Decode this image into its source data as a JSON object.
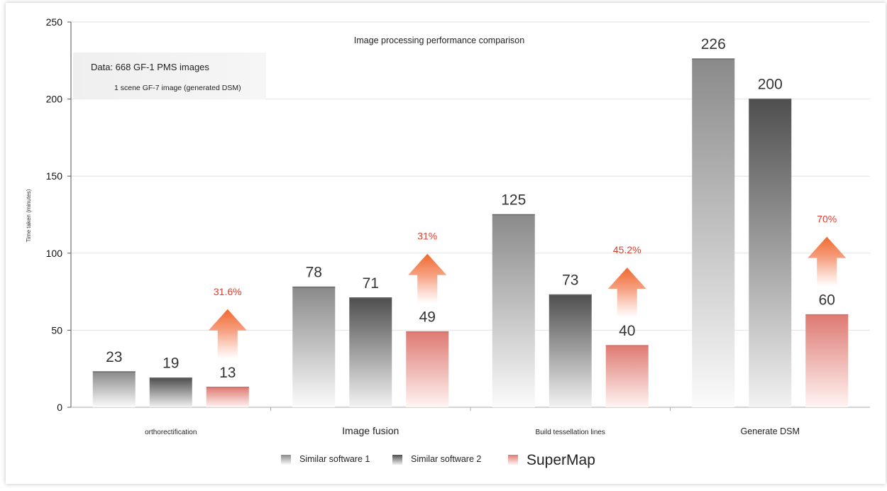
{
  "chart_data": {
    "type": "bar",
    "title": "Image processing performance comparison",
    "ylabel": "Time taken (minutes)",
    "xlabel": "",
    "ylim": [
      0,
      250
    ],
    "yticks": [
      0,
      50,
      100,
      150,
      200,
      250
    ],
    "grid": true,
    "legend_position": "bottom",
    "categories": [
      "orthorectification",
      "Image fusion",
      "Build tessellation lines",
      "Generate DSM"
    ],
    "series": [
      {
        "name": "Similar software 1",
        "values": [
          23,
          78,
          125,
          226
        ],
        "color": "#8c8c8c"
      },
      {
        "name": "Similar software 2",
        "values": [
          19,
          71,
          73,
          200
        ],
        "color": "#555555"
      },
      {
        "name": "SuperMap",
        "values": [
          13,
          49,
          40,
          60
        ],
        "color": "#de7a72"
      }
    ],
    "data_labels": {
      "s0": [
        "23",
        "78",
        "125",
        "226"
      ],
      "s1": [
        "19",
        "71",
        "73",
        "200"
      ],
      "s2": [
        "13",
        "49",
        "40",
        "60"
      ]
    },
    "annotations": {
      "improvements": [
        "31.6%",
        "31%",
        "45.2%",
        "70%"
      ],
      "note_line1": "Data: 668 GF-1 PMS images",
      "note_line2": "1 scene GF-7 image (generated DSM)"
    },
    "colors": {
      "improvement_text": "#e03c2c",
      "arrow_top": "#f06a3a",
      "arrow_bottom": "#ffffff"
    }
  }
}
